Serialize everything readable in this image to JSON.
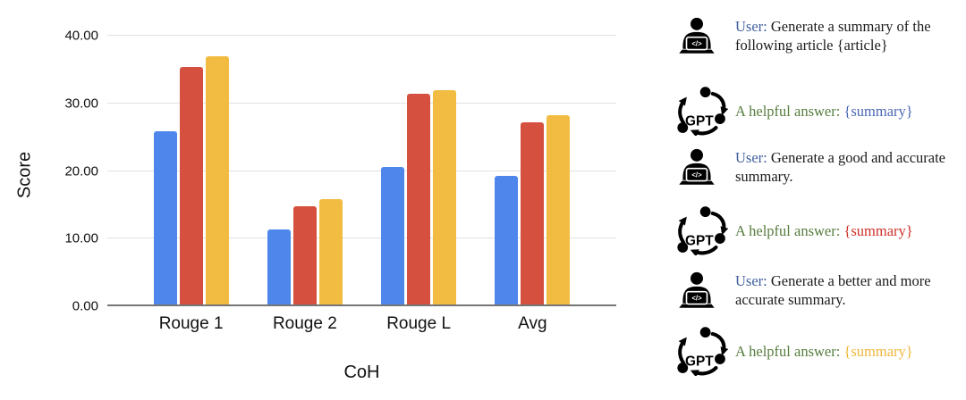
{
  "palette": {
    "bar_blue": "#4e86ec",
    "bar_red": "#d5503e",
    "bar_yellow": "#f2bc42",
    "user_blue": "#3e5e9e",
    "answer_green": "#567c3d",
    "summary_blue": "#4b67b4",
    "summary_red": "#cf3028",
    "summary_yellow": "#f0b63c",
    "text_black": "#1b1b1b",
    "gridline": "#e0e0e0",
    "axis_line": "#757575"
  },
  "chart_data": {
    "type": "bar",
    "title": "",
    "xlabel": "CoH",
    "ylabel": "Score",
    "ylim": [
      0,
      40
    ],
    "ticks": [
      0,
      10,
      20,
      30,
      40
    ],
    "tick_labels": [
      "0.00",
      "10.00",
      "20.00",
      "30.00",
      "40.00"
    ],
    "grid": true,
    "legend": "none",
    "categories": [
      "Rouge 1",
      "Rouge 2",
      "Rouge L",
      "Avg"
    ],
    "series": [
      {
        "name": "blue",
        "color_key": "bar_blue",
        "values": [
          25.9,
          11.3,
          20.6,
          19.3
        ]
      },
      {
        "name": "red",
        "color_key": "bar_red",
        "values": [
          35.4,
          14.8,
          31.4,
          27.2
        ]
      },
      {
        "name": "yellow",
        "color_key": "bar_yellow",
        "values": [
          36.9,
          15.9,
          31.9,
          28.2
        ]
      }
    ]
  },
  "dialog": {
    "icon_labels": {
      "gpt": "GPT",
      "laptop_code": "</>"
    },
    "rows": [
      {
        "icon": "user-laptop-icon",
        "segments": [
          {
            "text": "User: ",
            "color": "user_blue"
          },
          {
            "text": "Generate a summary of the following article {article}",
            "color": "text_black"
          }
        ]
      },
      {
        "icon": "gpt-cycle-icon",
        "segments": [
          {
            "text": "A helpful answer: ",
            "color": "answer_green"
          },
          {
            "text": "{summary}",
            "color": "summary_blue"
          }
        ]
      },
      {
        "icon": "user-laptop-icon",
        "segments": [
          {
            "text": "User: ",
            "color": "user_blue"
          },
          {
            "text": "Generate a good and accurate summary.",
            "color": "text_black"
          }
        ]
      },
      {
        "icon": "gpt-cycle-icon",
        "segments": [
          {
            "text": "A helpful answer: ",
            "color": "answer_green"
          },
          {
            "text": "{summary}",
            "color": "summary_red"
          }
        ]
      },
      {
        "icon": "user-laptop-icon",
        "segments": [
          {
            "text": "User: ",
            "color": "user_blue"
          },
          {
            "text": "Generate a better and more accurate summary.",
            "color": "text_black"
          }
        ]
      },
      {
        "icon": "gpt-cycle-icon",
        "segments": [
          {
            "text": "A helpful answer: ",
            "color": "answer_green"
          },
          {
            "text": "{summary}",
            "color": "summary_yellow"
          }
        ]
      }
    ]
  }
}
